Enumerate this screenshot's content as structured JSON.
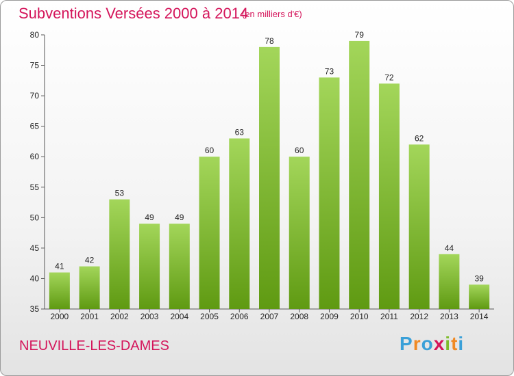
{
  "header": {
    "title": "Subventions Versées 2000 à 2014",
    "subtitle": "(en milliers d'€)"
  },
  "footer": {
    "commune": "NEUVILLE-LES-DAMES",
    "logo_letters": [
      "P",
      "r",
      "o",
      "x",
      "i",
      "t",
      "i"
    ],
    "logo_colors": [
      "#3aa0d8",
      "#f08a24",
      "#3aa0d8",
      "#d4145a",
      "#7dbb2a",
      "#f08a24",
      "#3aa0d8"
    ]
  },
  "colors": {
    "bar_top": "#a3d65a",
    "bar_bottom": "#5f9a12",
    "title": "#d4145a"
  },
  "chart_data": {
    "type": "bar",
    "categories": [
      "2000",
      "2001",
      "2002",
      "2003",
      "2004",
      "2005",
      "2006",
      "2007",
      "2008",
      "2009",
      "2010",
      "2011",
      "2012",
      "2013",
      "2014"
    ],
    "values": [
      41,
      42,
      53,
      49,
      49,
      60,
      63,
      78,
      60,
      73,
      79,
      72,
      62,
      44,
      39
    ],
    "title": "Subventions Versées 2000 à 2014",
    "subtitle": "(en milliers d'€)",
    "xlabel": "",
    "ylabel": "",
    "ylim": [
      35,
      80
    ],
    "yticks": [
      35,
      40,
      45,
      50,
      55,
      60,
      65,
      70,
      75,
      80
    ],
    "grid": false,
    "data_labels": true
  }
}
